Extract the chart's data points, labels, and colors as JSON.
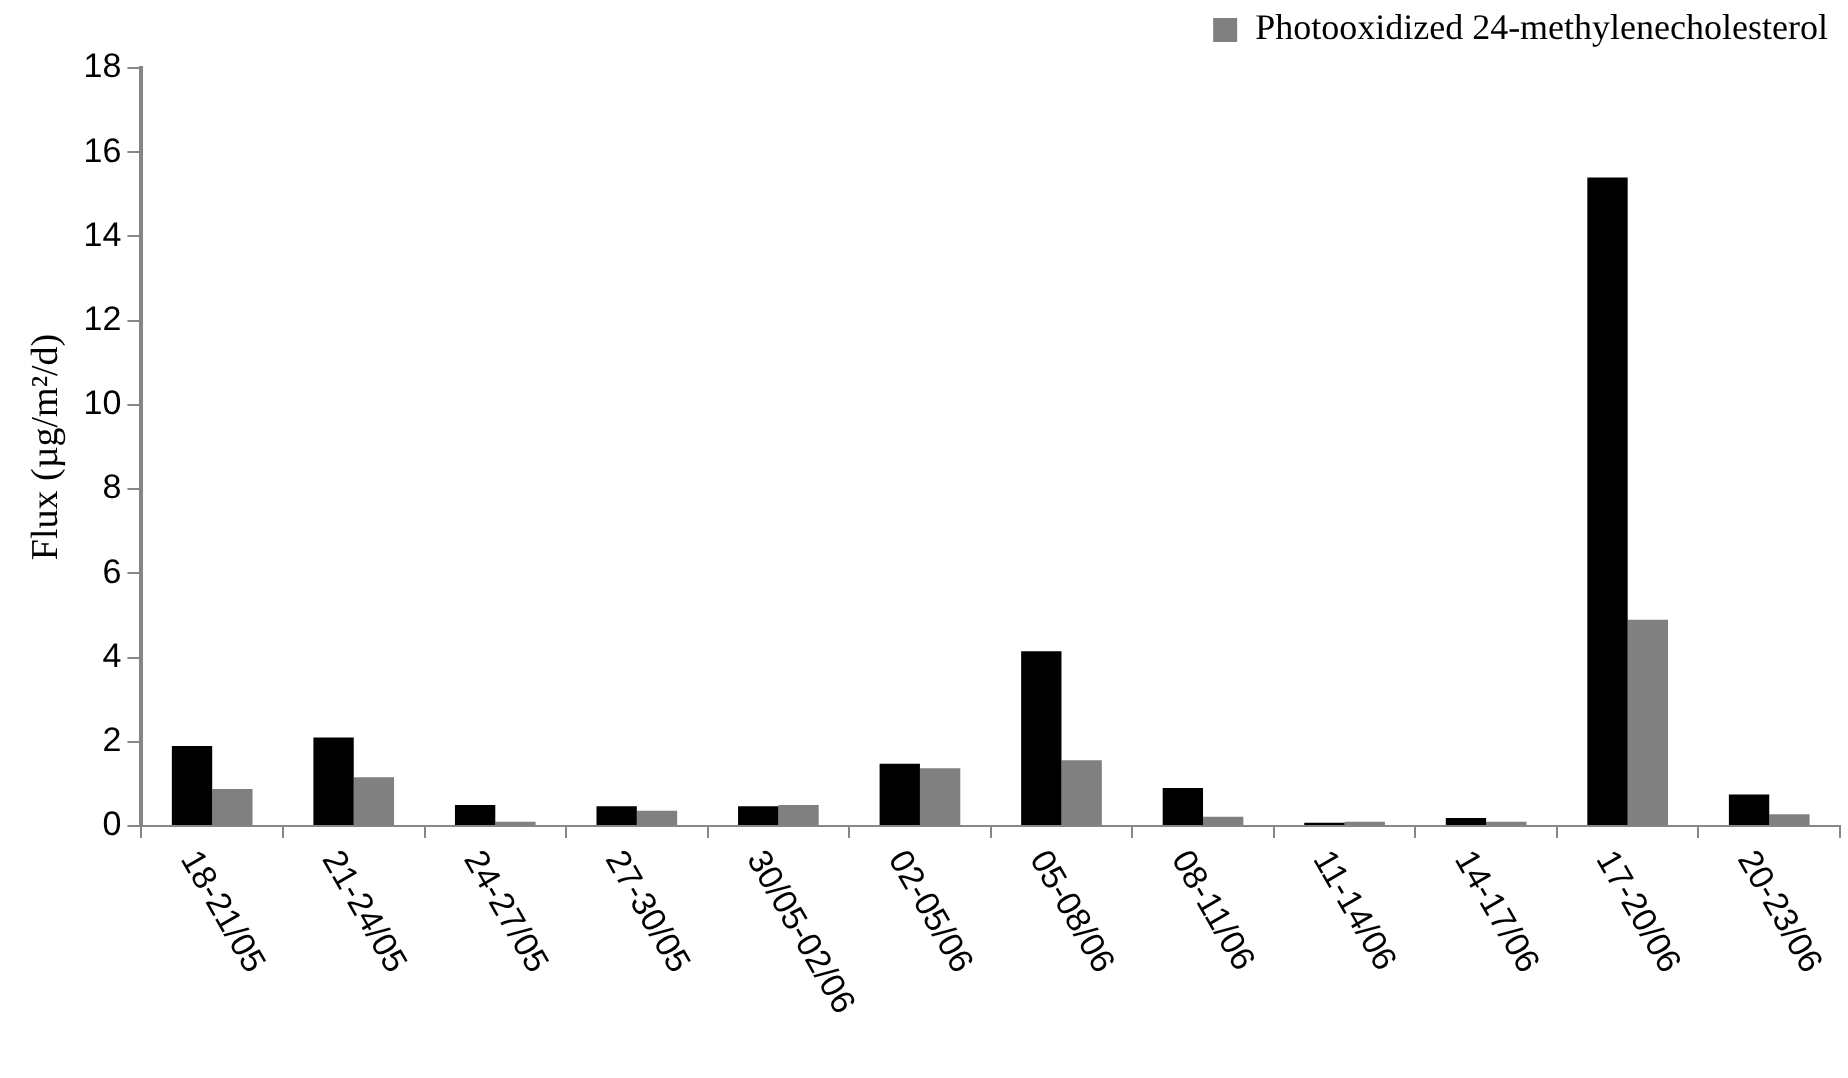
{
  "chart_data": {
    "type": "bar",
    "ylabel": "Flux (µg/m²/d)",
    "categories": [
      "18-21/05",
      "21-24/05",
      "24-27/05",
      "27-30/05",
      "30/05-02/06",
      "02-05/06",
      "05-08/06",
      "08-11/06",
      "11-14/06",
      "14-17/06",
      "17-20/06",
      "20-23/06"
    ],
    "series": [
      {
        "color": "#000000",
        "values": [
          1.9,
          2.1,
          0.5,
          0.47,
          0.47,
          1.48,
          4.15,
          0.9,
          0.08,
          0.19,
          15.4,
          0.75
        ]
      },
      {
        "name": "Photooxidized 24-methylenecholesterol",
        "color": "#808080",
        "values": [
          0.88,
          1.16,
          0.1,
          0.36,
          0.5,
          1.37,
          1.56,
          0.22,
          0.1,
          0.1,
          4.9,
          0.28
        ]
      }
    ],
    "ylim": [
      0,
      18
    ],
    "yticks": [
      0,
      2,
      4,
      6,
      8,
      10,
      12,
      14,
      16,
      18
    ],
    "grid": false,
    "legend": "top right"
  }
}
